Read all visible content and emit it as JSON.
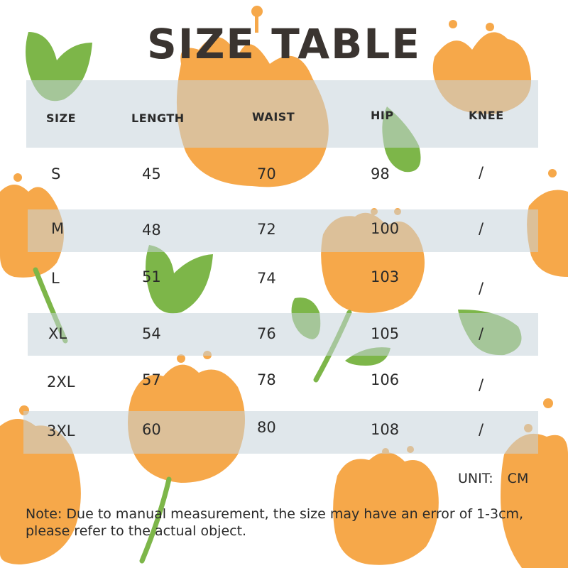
{
  "title": "SIZE TABLE",
  "headers": [
    "SIZE",
    "LENGTH",
    "WAIST",
    "HIP",
    "KNEE"
  ],
  "rows": [
    [
      "S",
      "45",
      "70",
      "98",
      "/"
    ],
    [
      "M",
      "48",
      "72",
      "100",
      "/"
    ],
    [
      "L",
      "51",
      "74",
      "103",
      "/"
    ],
    [
      "XL",
      "54",
      "76",
      "105",
      "/"
    ],
    [
      "2XL",
      "57",
      "78",
      "106",
      "/"
    ],
    [
      "3XL",
      "60",
      "80",
      "108",
      "/"
    ]
  ],
  "unit": "UNIT:  CM",
  "note": "Note: Due to manual measurement, the size may have an error of 1-3cm, please refer to the actual object.",
  "colors": {
    "tulip_orange": "#f6a84a",
    "leaf_green": "#7db649",
    "band_gray": "#c6d4da",
    "title_color": "#3a3430"
  }
}
